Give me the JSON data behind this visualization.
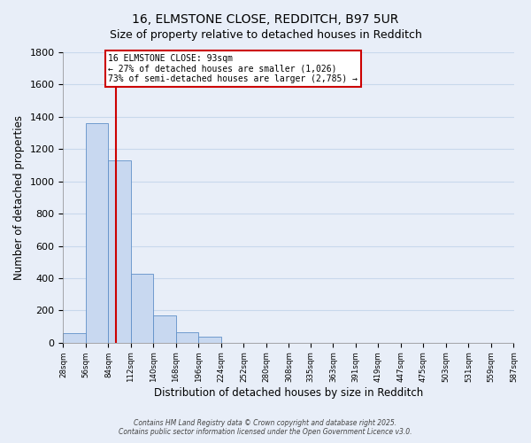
{
  "title_line1": "16, ELMSTONE CLOSE, REDDITCH, B97 5UR",
  "title_line2": "Size of property relative to detached houses in Redditch",
  "bar_values": [
    60,
    1360,
    1130,
    430,
    170,
    65,
    35,
    0,
    0,
    0,
    0,
    0,
    0,
    0,
    0,
    0,
    0,
    0,
    0,
    0
  ],
  "bin_edges": [
    28,
    56,
    84,
    112,
    140,
    168,
    196,
    224,
    252,
    280,
    308,
    335,
    363,
    391,
    419,
    447,
    475,
    503,
    531,
    559,
    587
  ],
  "bin_labels": [
    "28sqm",
    "56sqm",
    "84sqm",
    "112sqm",
    "140sqm",
    "168sqm",
    "196sqm",
    "224sqm",
    "252sqm",
    "280sqm",
    "308sqm",
    "335sqm",
    "363sqm",
    "391sqm",
    "419sqm",
    "447sqm",
    "475sqm",
    "503sqm",
    "531sqm",
    "559sqm",
    "587sqm"
  ],
  "bar_fill_color": "#c8d8f0",
  "bar_edge_color": "#6090c8",
  "vline_x": 93,
  "vline_color": "#cc0000",
  "ann_title": "16 ELMSTONE CLOSE: 93sqm",
  "ann_line2": "← 27% of detached houses are smaller (1,026)",
  "ann_line3": "73% of semi-detached houses are larger (2,785) →",
  "xlabel": "Distribution of detached houses by size in Redditch",
  "ylabel": "Number of detached properties",
  "ylim": [
    0,
    1800
  ],
  "yticks": [
    0,
    200,
    400,
    600,
    800,
    1000,
    1200,
    1400,
    1600,
    1800
  ],
  "grid_color": "#c8d8ec",
  "background_color": "#e8eef8",
  "annotation_box_facecolor": "#ffffff",
  "annotation_box_edgecolor": "#cc0000",
  "footer_line1": "Contains HM Land Registry data © Crown copyright and database right 2025.",
  "footer_line2": "Contains public sector information licensed under the Open Government Licence v3.0."
}
